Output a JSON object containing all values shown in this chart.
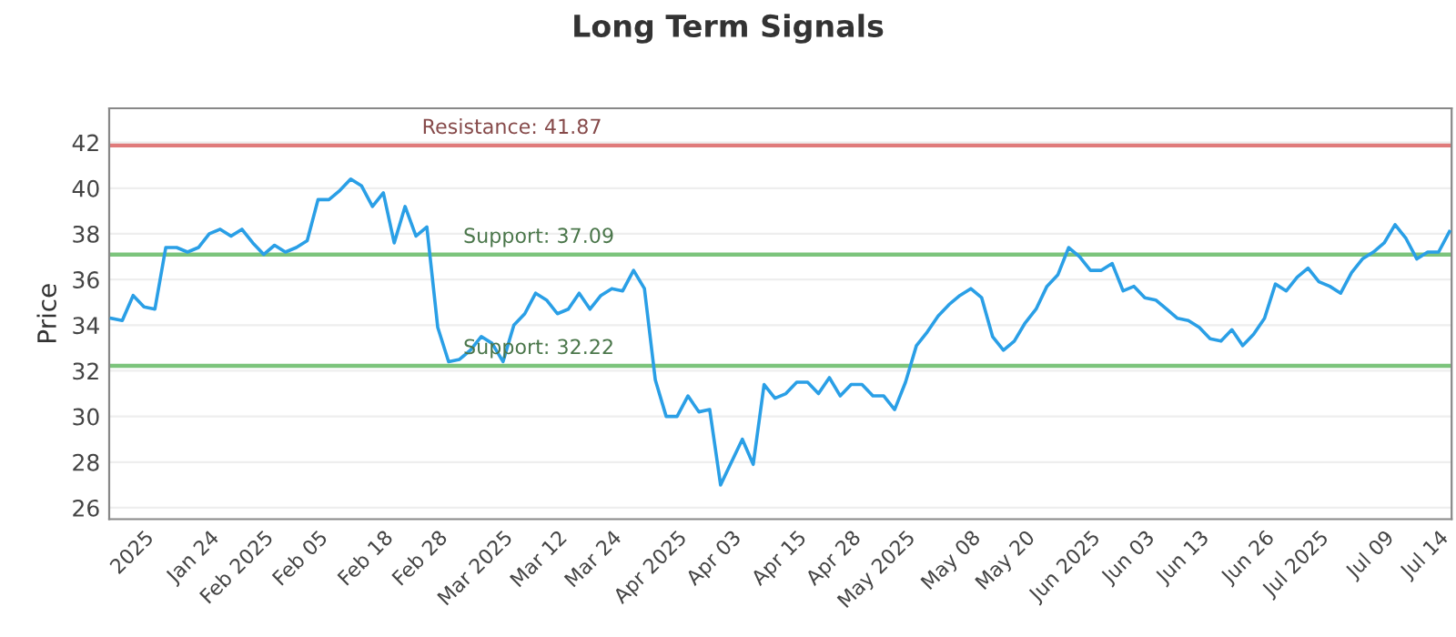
{
  "chart_data": {
    "type": "line",
    "title": "Long Term Signals",
    "ylabel": "Price",
    "categories": [
      null,
      null,
      null,
      "2025",
      null,
      null,
      null,
      null,
      null,
      "Jan 24",
      null,
      null,
      null,
      null,
      "Feb 2025",
      null,
      null,
      null,
      null,
      "Feb 05",
      null,
      null,
      null,
      null,
      null,
      "Feb 18",
      null,
      null,
      null,
      null,
      "Feb 28",
      null,
      null,
      null,
      null,
      null,
      "Mar 2025",
      null,
      null,
      null,
      null,
      "Mar 12",
      null,
      null,
      null,
      null,
      "Mar 24",
      null,
      null,
      null,
      null,
      null,
      "Apr 2025",
      null,
      null,
      null,
      null,
      "Apr 03",
      null,
      null,
      null,
      null,
      null,
      "Apr 15",
      null,
      null,
      null,
      null,
      "Apr 28",
      null,
      null,
      null,
      null,
      "May 2025",
      null,
      null,
      null,
      null,
      null,
      "May 08",
      null,
      null,
      null,
      null,
      "May 20",
      null,
      null,
      null,
      null,
      null,
      "Jun 2025",
      null,
      null,
      null,
      null,
      "Jun 03",
      null,
      null,
      null,
      null,
      "Jun 13",
      null,
      null,
      null,
      null,
      null,
      "Jun 26",
      null,
      null,
      null,
      null,
      "Jul 2025",
      null,
      null,
      null,
      null,
      null,
      "Jul 09",
      null,
      null,
      null,
      null,
      "Jul 14",
      null
    ],
    "series": [
      {
        "color": "#2a9fe6",
        "values": [
          34.3,
          34.2,
          35.3,
          34.8,
          34.7,
          37.4,
          37.4,
          37.2,
          37.4,
          38.0,
          38.2,
          37.9,
          38.2,
          37.6,
          37.1,
          37.5,
          37.2,
          37.4,
          37.7,
          39.5,
          39.5,
          39.9,
          40.4,
          40.1,
          39.2,
          39.8,
          37.6,
          39.2,
          37.9,
          38.3,
          33.9,
          32.4,
          32.5,
          32.9,
          33.5,
          33.2,
          32.4,
          34.0,
          34.5,
          35.4,
          35.1,
          34.5,
          34.7,
          35.4,
          34.7,
          35.3,
          35.6,
          35.5,
          36.4,
          35.6,
          31.6,
          30.0,
          30.0,
          30.9,
          30.2,
          30.3,
          27.0,
          28.0,
          29.0,
          27.9,
          31.4,
          30.8,
          31.0,
          31.5,
          31.5,
          31.0,
          31.7,
          30.9,
          31.4,
          31.4,
          30.9,
          30.9,
          30.3,
          31.5,
          33.1,
          33.7,
          34.4,
          34.9,
          35.3,
          35.6,
          35.2,
          33.5,
          32.9,
          33.3,
          34.1,
          34.7,
          35.7,
          36.2,
          37.4,
          37.0,
          36.4,
          36.4,
          36.7,
          35.5,
          35.7,
          35.2,
          35.1,
          34.7,
          34.3,
          34.2,
          33.9,
          33.4,
          33.3,
          33.8,
          33.1,
          33.6,
          34.3,
          35.8,
          35.5,
          36.1,
          36.5,
          35.9,
          35.7,
          35.4,
          36.3,
          36.9,
          37.2,
          37.6,
          38.4,
          37.8,
          36.9,
          37.2,
          37.2,
          38.1
        ]
      }
    ],
    "ylim": [
      25.5,
      43.5
    ],
    "yticks": [
      26,
      28,
      30,
      32,
      34,
      36,
      38,
      40,
      42
    ],
    "ref_lines": [
      {
        "axis": "y",
        "value": 41.87,
        "label": "Resistance: 41.87",
        "color": "#e07b7b"
      },
      {
        "axis": "y",
        "value": 37.09,
        "label": "Support: 37.09",
        "color": "#7cc47c"
      },
      {
        "axis": "y",
        "value": 32.22,
        "label": "Support: 32.22",
        "color": "#7cc47c"
      }
    ],
    "grid": "y",
    "marker": "none",
    "line_style": "solid",
    "legend": false
  }
}
